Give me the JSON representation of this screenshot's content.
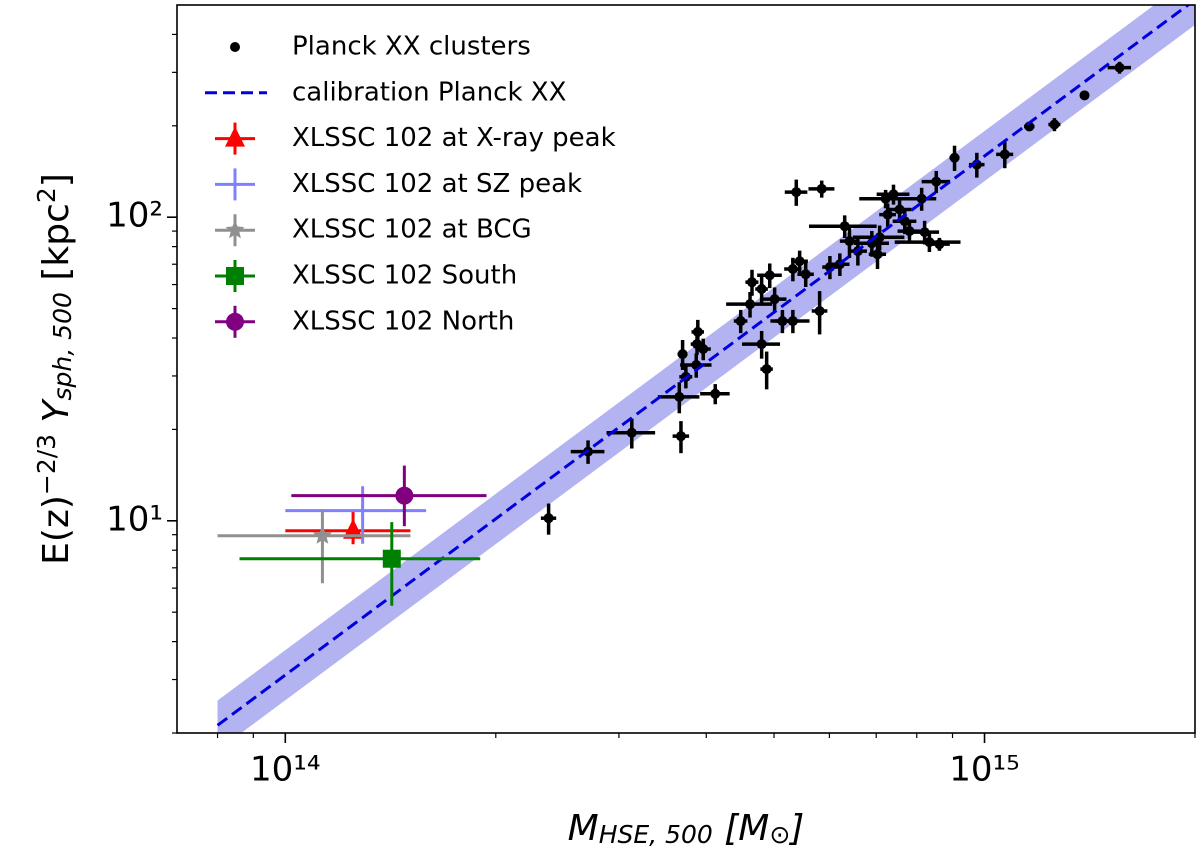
{
  "chart_data": {
    "type": "scatter",
    "xlog": true,
    "ylog": true,
    "xlim": [
      70000000000000.0,
      2000000000000000.0
    ],
    "ylim": [
      2,
      500
    ],
    "xticks": [
      {
        "value": 100000000000000.0,
        "label": "10¹⁴"
      },
      {
        "value": 1000000000000000.0,
        "label": "10¹⁵"
      }
    ],
    "yticks": [
      {
        "value": 10,
        "label": "10¹"
      },
      {
        "value": 100,
        "label": "10²"
      }
    ],
    "xminor_ticks": [
      80000000000000.0,
      90000000000000.0,
      200000000000000.0,
      300000000000000.0,
      400000000000000.0,
      500000000000000.0,
      600000000000000.0,
      700000000000000.0,
      800000000000000.0,
      900000000000000.0,
      2000000000000000.0
    ],
    "yminor_ticks": [
      2,
      3,
      4,
      5,
      6,
      7,
      8,
      9,
      20,
      30,
      40,
      50,
      60,
      70,
      80,
      90,
      200,
      300,
      400
    ],
    "xlabel": [
      {
        "text": "M",
        "italic": true
      },
      {
        "text": "HSE, 500",
        "italic": true,
        "sub": true
      },
      {
        "text": " [M",
        "italic": true
      },
      {
        "text": "⊙",
        "sub": true
      },
      {
        "text": "]",
        "italic": true
      }
    ],
    "ylabel": [
      {
        "text": "E(z)"
      },
      {
        "text": "−2/3",
        "sup": true
      },
      {
        "text": " Y",
        "italic": true
      },
      {
        "text": "sph, 500",
        "italic": true,
        "sub": true
      },
      {
        "text": " [kpc"
      },
      {
        "text": "2",
        "sup": true
      },
      {
        "text": "]"
      }
    ],
    "legend": "upper left",
    "series": [
      {
        "name": "Planck XX clusters",
        "color": "#000000",
        "marker": "o",
        "x": [
          238000000000000.0,
          271000000000000.0,
          313000000000000.0,
          368000000000000.0,
          366000000000000.0,
          374000000000000.0,
          370000000000000.0,
          387000000000000.0,
          412000000000000.0,
          388000000000000.0,
          396000000000000.0,
          389000000000000.0,
          448000000000000.0,
          488000000000000.0,
          480000000000000.0,
          465000000000000.0,
          462000000000000.0,
          480000000000000.0,
          493000000000000.0,
          501000000000000.0,
          514000000000000.0,
          532000000000000.0,
          532000000000000.0,
          544000000000000.0,
          555000000000000.0,
          581000000000000.0,
          601000000000000.0,
          621000000000000.0,
          538000000000000.0,
          631000000000000.0,
          641000000000000.0,
          659000000000000.0,
          690000000000000.0,
          703000000000000.0,
          708000000000000.0,
          722000000000000.0,
          727000000000000.0,
          741000000000000.0,
          756000000000000.0,
          769000000000000.0,
          781000000000000.0,
          813000000000000.0,
          821000000000000.0,
          834000000000000.0,
          853000000000000.0,
          906000000000000.0,
          862000000000000.0,
          975000000000000.0,
          1069000000000000.0,
          1159000000000000.0,
          1259000000000000.0,
          1390000000000000.0,
          1560000000000000.0,
          585000000000000.0
        ],
        "values": [
          10.2,
          16.9,
          19.5,
          19.0,
          25.6,
          29.8,
          35.4,
          32.6,
          26.2,
          38.2,
          36.8,
          41.9,
          45.5,
          31.6,
          38.2,
          61.1,
          51.7,
          58.0,
          64.4,
          53.7,
          45.5,
          45.5,
          67.5,
          71.6,
          64.9,
          49.1,
          68.5,
          70.0,
          121,
          93.4,
          83.4,
          77.3,
          82.1,
          75.5,
          85.9,
          115,
          102,
          119,
          106,
          97,
          90,
          115,
          89.3,
          82.8,
          131,
          157,
          81.5,
          149,
          161,
          199,
          202,
          252,
          311,
          124
        ],
        "xerr": [
          6000000000000.0,
          15000000000000.0,
          25000000000000.0,
          10000000000000.0,
          25000000000000.0,
          8000000000000.0,
          6000000000000.0,
          20000000000000.0,
          20000000000000.0,
          8000000000000.0,
          10000000000000.0,
          8000000000000.0,
          10000000000000.0,
          10000000000000.0,
          30000000000000.0,
          10000000000000.0,
          35000000000000.0,
          10000000000000.0,
          20000000000000.0,
          20000000000000.0,
          20000000000000.0,
          30000000000000.0,
          15000000000000.0,
          15000000000000.0,
          15000000000000.0,
          15000000000000.0,
          15000000000000.0,
          20000000000000.0,
          20000000000000.0,
          70000000000000.0,
          20000000000000.0,
          20000000000000.0,
          40000000000000.0,
          20000000000000.0,
          60000000000000.0,
          60000000000000.0,
          20000000000000.0,
          40000000000000.0,
          30000000000000.0,
          30000000000000.0,
          30000000000000.0,
          40000000000000.0,
          40000000000000.0,
          90000000000000.0,
          40000000000000.0,
          15000000000000.0,
          30000000000000.0,
          25000000000000.0,
          30000000000000.0,
          20000000000000.0,
          25000000000000.0,
          10000000000000.0,
          60000000000000.0,
          25000000000000.0
        ],
        "yerr": [
          1.2,
          1.5,
          2.2,
          2.3,
          3,
          2.5,
          4,
          3,
          2,
          3,
          3,
          4,
          4,
          4.5,
          4,
          6,
          5,
          6,
          6,
          5,
          4,
          4,
          6,
          6,
          6,
          8,
          6,
          6,
          12,
          8,
          10,
          8,
          8,
          8,
          8,
          8,
          9,
          9,
          9,
          9,
          8,
          10,
          8,
          6,
          11,
          15,
          4,
          14,
          16,
          6,
          10,
          6,
          14,
          8
        ]
      },
      {
        "name": "calibration Planck XX",
        "color": "#0000dd",
        "style": "dashed",
        "x": [
          80000000000000.0,
          2000000000000000.0
        ],
        "values": [
          2.12,
          520
        ],
        "band": {
          "color": "#9a9aee",
          "lower": [
            1.75,
            430
          ],
          "upper": [
            2.56,
            629
          ]
        }
      },
      {
        "name": "XLSSC 102 at X-ray peak",
        "color": "#ff0000",
        "marker": "^",
        "x": [
          125000000000000.0
        ],
        "values": [
          9.27
        ],
        "xerr": [
          [
            25000000000000.0,
            26000000000000.0
          ]
        ],
        "yerr": [
          [
            0.9,
            1.5
          ]
        ]
      },
      {
        "name": "XLSSC 102 at SZ peak",
        "color": "#8080ff",
        "marker": "+",
        "x": [
          129000000000000.0
        ],
        "values": [
          10.8
        ],
        "xerr": [
          [
            29000000000000.0,
            30000000000000.0
          ]
        ],
        "yerr": [
          [
            2.4,
            2.2
          ]
        ]
      },
      {
        "name": "XLSSC 102 at BCG",
        "color": "#909090",
        "marker": "*",
        "x": [
          113000000000000.0
        ],
        "values": [
          8.93
        ],
        "xerr": [
          [
            33000000000000.0,
            38000000000000.0
          ]
        ],
        "yerr": [
          [
            2.7,
            2.0
          ]
        ]
      },
      {
        "name": "XLSSC 102 South",
        "color": "#008000",
        "marker": "s",
        "x": [
          142000000000000.0
        ],
        "values": [
          7.5
        ],
        "xerr": [
          [
            56000000000000.0,
            48000000000000.0
          ]
        ],
        "yerr": [
          [
            2.25,
            2.4
          ]
        ]
      },
      {
        "name": "XLSSC 102 North",
        "color": "#800080",
        "marker": "o",
        "x": [
          148000000000000.0
        ],
        "values": [
          12.1
        ],
        "xerr": [
          [
            46000000000000.0,
            46000000000000.0
          ]
        ],
        "yerr": [
          [
            2.5,
            3.1
          ]
        ]
      }
    ]
  }
}
